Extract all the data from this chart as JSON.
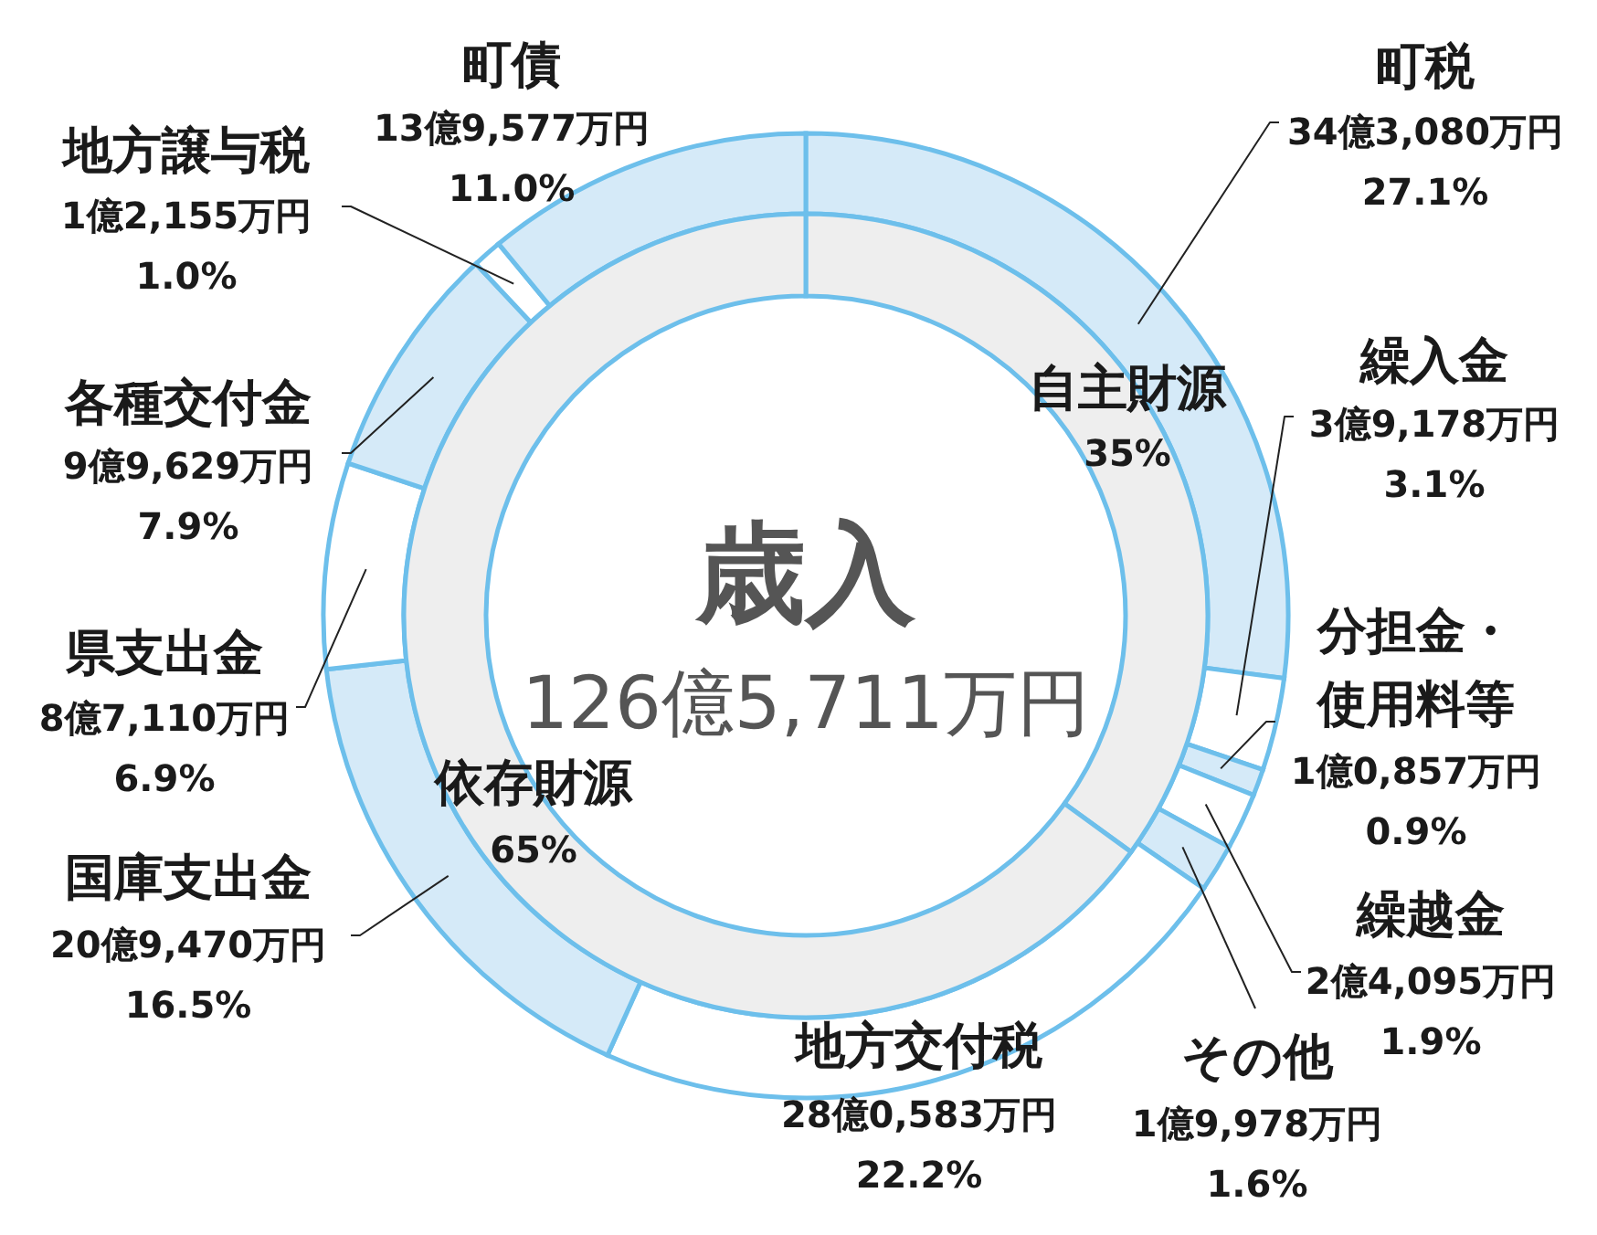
{
  "chart_data": [
    {
      "type": "donut",
      "categories": [
        "町税",
        "繰入金",
        "分担金・使用料等",
        "繰越金",
        "その他",
        "地方交付税",
        "国庫支出金",
        "県支出金",
        "各種交付金",
        "地方譲与税",
        "町債"
      ],
      "values": [
        27.1,
        3.1,
        0.9,
        1.9,
        1.6,
        22.2,
        16.5,
        6.9,
        7.9,
        1.0,
        11.0
      ],
      "colors": [
        "#d5eaf8",
        "#ffffff",
        "#d5eaf8",
        "#ffffff",
        "#d5eaf8",
        "#ffffff",
        "#d5eaf8",
        "#ffffff",
        "#d5eaf8",
        "#ffffff",
        "#d5eaf8"
      ],
      "value_labels": [
        "34億3,080万円\n27.1%",
        "3億9,178万円\n3.1%",
        "1億0,857万円\n0.9%",
        "2億4,095万円\n1.9%",
        "1億9,978万円\n1.6%",
        "28億0,583万円\n22.2%",
        "20億9,470万円\n16.5%",
        "8億7,110万円\n6.9%",
        "9億9,629万円\n7.9%",
        "1億2,155万円\n1.0%",
        "13億9,577万円\n11.0%"
      ]
    },
    {
      "type": "donut",
      "title": "歳入",
      "subtitle": "126億5,711万円",
      "categories": [
        "自主財源",
        "依存財源"
      ],
      "values": [
        35,
        65
      ],
      "colors": [
        "#eeeeee",
        "#eeeeee"
      ],
      "value_labels": [
        "35%",
        "65%"
      ]
    }
  ]
}
